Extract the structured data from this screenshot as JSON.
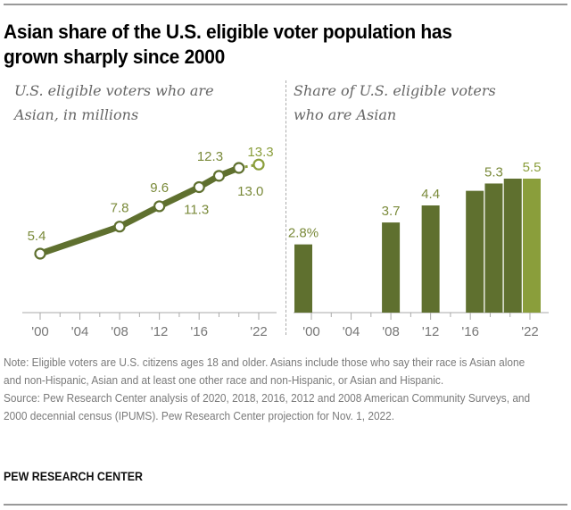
{
  "title": "Asian share of the U.S. eligible voter population has grown sharply since 2000",
  "title_lines": [
    "Asian share of the U.S. eligible voter population has",
    "grown sharply since 2000"
  ],
  "colors": {
    "dark_green": "#5f702f",
    "light_green": "#8a9e3b",
    "label_green": "#7a8a3a",
    "axis_gray": "#aaaaaa",
    "text_gray": "#7a7a7a"
  },
  "chart_data": [
    {
      "type": "line",
      "subtitle_lines": [
        "U.S. eligible voters who are",
        "Asian, in millions"
      ],
      "title": "U.S. eligible voters who are Asian, in millions",
      "x": [
        2000,
        2008,
        2012,
        2016,
        2018,
        2020,
        2022
      ],
      "values": [
        5.4,
        7.8,
        9.6,
        11.3,
        12.3,
        13.0,
        13.3
      ],
      "labels": [
        "5.4",
        "7.8",
        "9.6",
        "11.3",
        "12.3",
        "13.0",
        "13.3"
      ],
      "projected": [
        false,
        false,
        false,
        false,
        false,
        false,
        true
      ],
      "xlim": [
        2000,
        2022
      ],
      "xticks": [
        2000,
        2002,
        2004,
        2006,
        2008,
        2010,
        2012,
        2014,
        2016,
        2018,
        2020,
        2022
      ],
      "xtick_labels": [
        {
          "year": 2000,
          "label": "'00"
        },
        {
          "year": 2004,
          "label": "'04"
        },
        {
          "year": 2008,
          "label": "'08"
        },
        {
          "year": 2012,
          "label": "'12"
        },
        {
          "year": 2016,
          "label": "'16"
        },
        {
          "year": 2022,
          "label": "'22"
        }
      ],
      "ylim": [
        0,
        14
      ],
      "grid": false
    },
    {
      "type": "bar",
      "subtitle_lines": [
        "Share of U.S. eligible voters",
        "who are Asian"
      ],
      "title": "Share of U.S. eligible voters who are Asian",
      "x": [
        2000,
        2008,
        2012,
        2016,
        2018,
        2020,
        2022
      ],
      "values": [
        2.8,
        3.7,
        4.4,
        5.0,
        5.3,
        5.5,
        5.5
      ],
      "labels": [
        "2.8%",
        "3.7",
        "4.4",
        "",
        "5.3",
        "",
        "5.5"
      ],
      "projected": [
        false,
        false,
        false,
        false,
        false,
        false,
        true
      ],
      "xlim": [
        2000,
        2022
      ],
      "xticks": [
        2000,
        2002,
        2004,
        2006,
        2008,
        2010,
        2012,
        2014,
        2016,
        2018,
        2020,
        2022
      ],
      "xtick_labels": [
        {
          "year": 2000,
          "label": "'00"
        },
        {
          "year": 2004,
          "label": "'04"
        },
        {
          "year": 2008,
          "label": "'08"
        },
        {
          "year": 2012,
          "label": "'12"
        },
        {
          "year": 2016,
          "label": "'16"
        },
        {
          "year": 2022,
          "label": "'22"
        }
      ],
      "ylim": [
        0,
        6
      ],
      "grid": false
    }
  ],
  "notes": {
    "note": "Note: Eligible voters are U.S. citizens ages 18 and older. Asians include those who say their race is Asian alone and non-Hispanic, Asian and at least one other race and non-Hispanic, or Asian and Hispanic.",
    "source": "Source: Pew Research Center analysis of 2020, 2018, 2016, 2012 and 2008 American Community Surveys, and 2000 decennial census (IPUMS). Pew Research Center projection for Nov. 1, 2022."
  },
  "brand": "PEW RESEARCH CENTER"
}
